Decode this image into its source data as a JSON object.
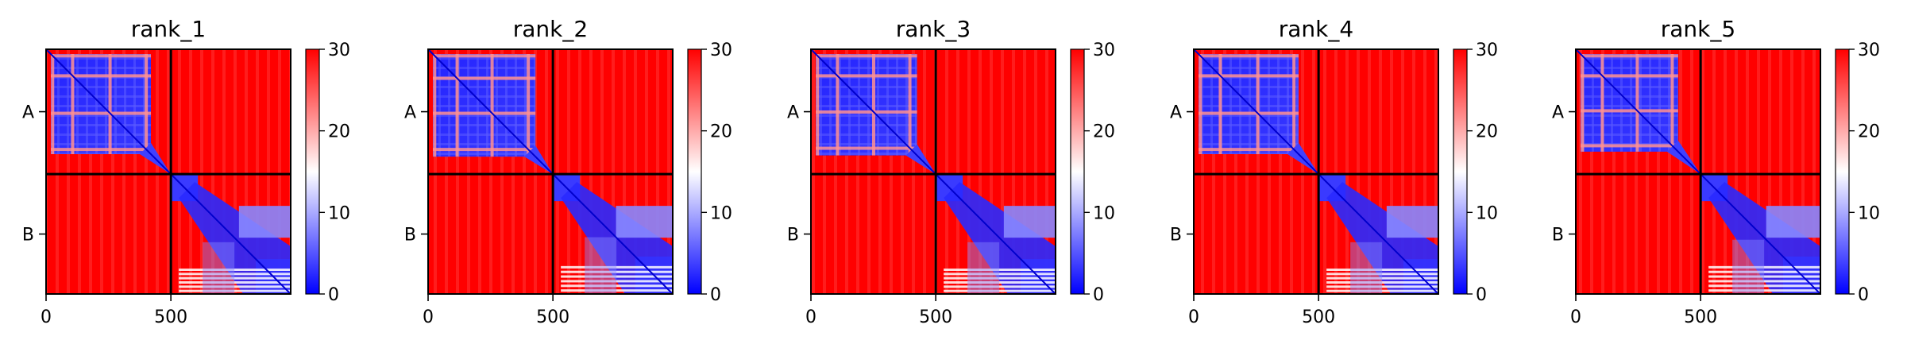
{
  "chart_data": [
    {
      "type": "heatmap",
      "title": "rank_1",
      "xlabel": "",
      "ylabel": "",
      "x_ticks": [
        0,
        500
      ],
      "y_tick_labels": [
        "A",
        "B"
      ],
      "chains": [
        {
          "name": "A",
          "start": 0,
          "end": 500
        },
        {
          "name": "B",
          "start": 500,
          "end": 980
        }
      ],
      "xlim": [
        0,
        980
      ],
      "colorbar": {
        "min": 0,
        "max": 30,
        "ticks": [
          0,
          10,
          20,
          30
        ],
        "colors": [
          "#0000ff",
          "#ffffff",
          "#ff0000"
        ]
      },
      "matrix": {
        "intra_A_value": 5,
        "intra_B_value": 8,
        "inter_chain_value": 30,
        "A_bands": [
          20,
          100,
          250,
          395
        ],
        "A_edge": 420,
        "B_bands": [
          640,
          760,
          840,
          910
        ]
      }
    },
    {
      "type": "heatmap",
      "title": "rank_2",
      "xlabel": "",
      "ylabel": "",
      "x_ticks": [
        0,
        500
      ],
      "y_tick_labels": [
        "A",
        "B"
      ],
      "chains": [
        {
          "name": "A",
          "start": 0,
          "end": 500
        },
        {
          "name": "B",
          "start": 500,
          "end": 980
        }
      ],
      "xlim": [
        0,
        980
      ],
      "colorbar": {
        "min": 0,
        "max": 30,
        "ticks": [
          0,
          10,
          20,
          30
        ],
        "colors": [
          "#0000ff",
          "#ffffff",
          "#ff0000"
        ]
      },
      "matrix": {
        "intra_A_value": 5,
        "intra_B_value": 8,
        "inter_chain_value": 30,
        "A_bands": [
          20,
          110,
          250,
          395
        ],
        "A_edge": 430,
        "B_bands": [
          620,
          740,
          830,
          905
        ]
      }
    },
    {
      "type": "heatmap",
      "title": "rank_3",
      "xlabel": "",
      "ylabel": "",
      "x_ticks": [
        0,
        500
      ],
      "y_tick_labels": [
        "A",
        "B"
      ],
      "chains": [
        {
          "name": "A",
          "start": 0,
          "end": 500
        },
        {
          "name": "B",
          "start": 500,
          "end": 980
        }
      ],
      "xlim": [
        0,
        980
      ],
      "colorbar": {
        "min": 0,
        "max": 30,
        "ticks": [
          0,
          10,
          20,
          30
        ],
        "colors": [
          "#0000ff",
          "#ffffff",
          "#ff0000"
        ]
      },
      "matrix": {
        "intra_A_value": 5,
        "intra_B_value": 8,
        "inter_chain_value": 30,
        "A_bands": [
          20,
          100,
          245,
          390
        ],
        "A_edge": 425,
        "B_bands": [
          630,
          760,
          840,
          910
        ]
      }
    },
    {
      "type": "heatmap",
      "title": "rank_4",
      "xlabel": "",
      "ylabel": "",
      "x_ticks": [
        0,
        500
      ],
      "y_tick_labels": [
        "A",
        "B"
      ],
      "chains": [
        {
          "name": "A",
          "start": 0,
          "end": 500
        },
        {
          "name": "B",
          "start": 500,
          "end": 980
        }
      ],
      "xlim": [
        0,
        980
      ],
      "colorbar": {
        "min": 0,
        "max": 30,
        "ticks": [
          0,
          10,
          20,
          30
        ],
        "colors": [
          "#0000ff",
          "#ffffff",
          "#ff0000"
        ]
      },
      "matrix": {
        "intra_A_value": 5,
        "intra_B_value": 8,
        "inter_chain_value": 30,
        "A_bands": [
          20,
          100,
          250,
          395
        ],
        "A_edge": 420,
        "B_bands": [
          640,
          760,
          840,
          910
        ]
      }
    },
    {
      "type": "heatmap",
      "title": "rank_5",
      "xlabel": "",
      "ylabel": "",
      "x_ticks": [
        0,
        500
      ],
      "y_tick_labels": [
        "A",
        "B"
      ],
      "chains": [
        {
          "name": "A",
          "start": 0,
          "end": 500
        },
        {
          "name": "B",
          "start": 500,
          "end": 980
        }
      ],
      "xlim": [
        0,
        980
      ],
      "colorbar": {
        "min": 0,
        "max": 30,
        "ticks": [
          0,
          10,
          20,
          30
        ],
        "colors": [
          "#0000ff",
          "#ffffff",
          "#ff0000"
        ]
      },
      "matrix": {
        "intra_A_value": 5,
        "intra_B_value": 9,
        "inter_chain_value": 30,
        "A_bands": [
          20,
          100,
          240,
          380
        ],
        "A_edge": 410,
        "B_bands": [
          630,
          750,
          830,
          905
        ]
      }
    }
  ]
}
